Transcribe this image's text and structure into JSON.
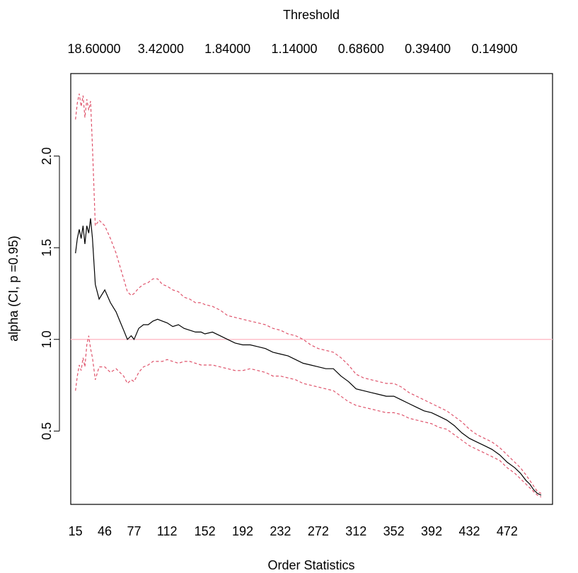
{
  "chart_data": {
    "type": "line",
    "xlabel": "Order Statistics",
    "ylabel": "alpha (CI, p =0.95)",
    "top_axis_label": "Threshold",
    "top_ticks": [
      "18.60000",
      "3.42000",
      "1.84000",
      "1.14000",
      "0.68600",
      "0.39400",
      "0.14900"
    ],
    "x_ticks": [
      15,
      46,
      77,
      112,
      152,
      192,
      232,
      272,
      312,
      352,
      392,
      432,
      472
    ],
    "y_ticks": [
      0.5,
      1.0,
      1.5,
      2.0
    ],
    "y_tick_labels": [
      "0.5",
      "1.0",
      "1.5",
      "2.0"
    ],
    "xlim": [
      10,
      520
    ],
    "ylim": [
      0.1,
      2.45
    ],
    "reference_line": 1.0,
    "colors": {
      "estimate": "#000000",
      "ci": "#DF536B",
      "reference": "#FFC0CB"
    },
    "series": [
      {
        "role": "estimate",
        "x": [
          15,
          17,
          19,
          21,
          23,
          25,
          27,
          29,
          31,
          33,
          36,
          40,
          46,
          52,
          58,
          62,
          66,
          70,
          74,
          77,
          82,
          87,
          92,
          97,
          102,
          107,
          112,
          118,
          124,
          130,
          136,
          142,
          148,
          152,
          160,
          168,
          176,
          184,
          192,
          200,
          208,
          216,
          224,
          232,
          240,
          248,
          256,
          264,
          272,
          280,
          288,
          296,
          304,
          312,
          320,
          328,
          336,
          344,
          352,
          360,
          368,
          376,
          384,
          392,
          400,
          408,
          416,
          424,
          432,
          440,
          448,
          456,
          464,
          472,
          480,
          486,
          492,
          496,
          500,
          504,
          508
        ],
        "y": [
          1.47,
          1.55,
          1.6,
          1.55,
          1.62,
          1.52,
          1.62,
          1.58,
          1.66,
          1.55,
          1.3,
          1.22,
          1.27,
          1.2,
          1.15,
          1.1,
          1.05,
          1.0,
          1.02,
          1.0,
          1.06,
          1.08,
          1.08,
          1.1,
          1.11,
          1.1,
          1.09,
          1.07,
          1.08,
          1.06,
          1.05,
          1.04,
          1.04,
          1.03,
          1.04,
          1.02,
          1.0,
          0.98,
          0.97,
          0.97,
          0.96,
          0.95,
          0.93,
          0.92,
          0.91,
          0.89,
          0.87,
          0.86,
          0.85,
          0.84,
          0.84,
          0.8,
          0.77,
          0.73,
          0.72,
          0.71,
          0.7,
          0.69,
          0.69,
          0.67,
          0.65,
          0.63,
          0.61,
          0.6,
          0.58,
          0.56,
          0.53,
          0.49,
          0.46,
          0.44,
          0.42,
          0.4,
          0.37,
          0.33,
          0.3,
          0.27,
          0.23,
          0.21,
          0.18,
          0.16,
          0.15
        ]
      },
      {
        "role": "upper_ci",
        "x": [
          15,
          17,
          19,
          21,
          23,
          25,
          27,
          29,
          31,
          33,
          36,
          40,
          46,
          52,
          58,
          62,
          66,
          70,
          74,
          77,
          82,
          87,
          92,
          97,
          102,
          107,
          112,
          118,
          124,
          130,
          136,
          142,
          148,
          152,
          160,
          168,
          176,
          184,
          192,
          200,
          208,
          216,
          224,
          232,
          240,
          248,
          256,
          264,
          272,
          280,
          288,
          296,
          304,
          312,
          320,
          328,
          336,
          344,
          352,
          360,
          368,
          376,
          384,
          392,
          400,
          408,
          416,
          424,
          432,
          440,
          448,
          456,
          464,
          472,
          480,
          486,
          492,
          496,
          500,
          504,
          508
        ],
        "y": [
          2.2,
          2.29,
          2.34,
          2.27,
          2.33,
          2.21,
          2.31,
          2.25,
          2.3,
          2.05,
          1.62,
          1.65,
          1.62,
          1.55,
          1.47,
          1.4,
          1.33,
          1.26,
          1.24,
          1.25,
          1.28,
          1.3,
          1.31,
          1.33,
          1.33,
          1.3,
          1.29,
          1.27,
          1.26,
          1.23,
          1.22,
          1.2,
          1.2,
          1.19,
          1.18,
          1.16,
          1.13,
          1.12,
          1.11,
          1.1,
          1.09,
          1.08,
          1.06,
          1.05,
          1.03,
          1.02,
          1.0,
          0.97,
          0.95,
          0.94,
          0.93,
          0.9,
          0.86,
          0.81,
          0.79,
          0.78,
          0.77,
          0.76,
          0.76,
          0.74,
          0.71,
          0.69,
          0.67,
          0.65,
          0.63,
          0.61,
          0.58,
          0.55,
          0.51,
          0.48,
          0.46,
          0.44,
          0.41,
          0.37,
          0.33,
          0.3,
          0.26,
          0.23,
          0.2,
          0.17,
          0.16
        ]
      },
      {
        "role": "lower_ci",
        "x": [
          15,
          17,
          19,
          21,
          23,
          25,
          27,
          29,
          31,
          33,
          36,
          40,
          46,
          52,
          58,
          62,
          66,
          70,
          74,
          77,
          82,
          87,
          92,
          97,
          102,
          107,
          112,
          118,
          124,
          130,
          136,
          142,
          148,
          152,
          160,
          168,
          176,
          184,
          192,
          200,
          208,
          216,
          224,
          232,
          240,
          248,
          256,
          264,
          272,
          280,
          288,
          296,
          304,
          312,
          320,
          328,
          336,
          344,
          352,
          360,
          368,
          376,
          384,
          392,
          400,
          408,
          416,
          424,
          432,
          440,
          448,
          456,
          464,
          472,
          480,
          486,
          492,
          496,
          500,
          504,
          508
        ],
        "y": [
          0.72,
          0.8,
          0.86,
          0.83,
          0.9,
          0.85,
          0.97,
          1.02,
          0.95,
          0.9,
          0.78,
          0.85,
          0.85,
          0.82,
          0.84,
          0.82,
          0.8,
          0.76,
          0.78,
          0.77,
          0.82,
          0.85,
          0.86,
          0.88,
          0.88,
          0.88,
          0.89,
          0.88,
          0.87,
          0.88,
          0.88,
          0.87,
          0.86,
          0.86,
          0.86,
          0.85,
          0.84,
          0.83,
          0.83,
          0.84,
          0.83,
          0.82,
          0.8,
          0.8,
          0.79,
          0.78,
          0.76,
          0.75,
          0.74,
          0.73,
          0.72,
          0.69,
          0.66,
          0.64,
          0.63,
          0.62,
          0.61,
          0.6,
          0.6,
          0.59,
          0.57,
          0.56,
          0.55,
          0.54,
          0.52,
          0.51,
          0.48,
          0.45,
          0.42,
          0.4,
          0.38,
          0.36,
          0.34,
          0.3,
          0.27,
          0.24,
          0.21,
          0.19,
          0.17,
          0.15,
          0.14
        ]
      }
    ]
  }
}
